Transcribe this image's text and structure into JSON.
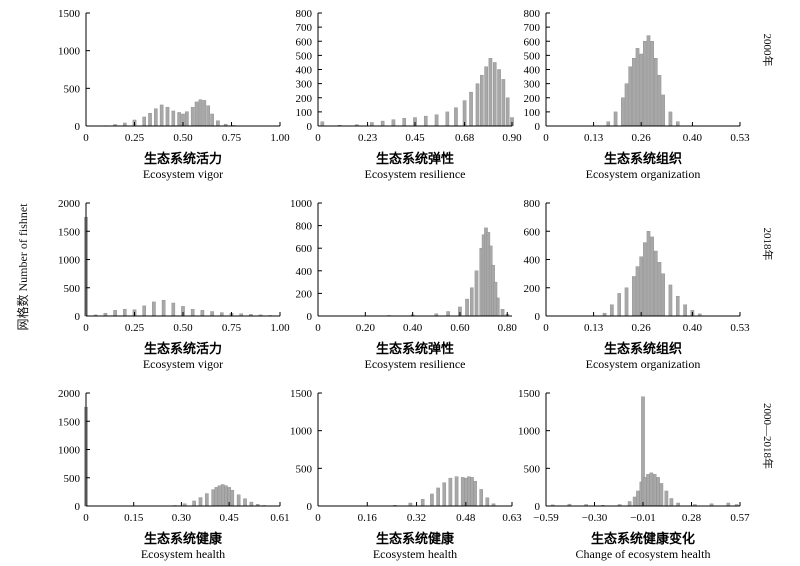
{
  "figure": {
    "ylabel": "网格数  Number of fishnet",
    "row_labels": [
      "2000年",
      "2018年",
      "2000—2018年"
    ]
  },
  "chart_data": [
    {
      "type": "bar",
      "row": 0,
      "col": 0,
      "title_zh": "生态系统活力",
      "title_en": "Ecosystem vigor",
      "xlim": [
        0,
        1
      ],
      "ylim": [
        0,
        1500
      ],
      "xticks": [
        0,
        0.25,
        0.5,
        0.75,
        1.0
      ],
      "xtick_labels": [
        "0",
        "0.25",
        "0.50",
        "0.75",
        "1.00"
      ],
      "yticks": [
        0,
        500,
        1000,
        1500
      ],
      "ytick_labels": [
        "0",
        "500",
        "1000",
        "1500"
      ],
      "x": [
        0.1,
        0.15,
        0.2,
        0.25,
        0.3,
        0.33,
        0.36,
        0.39,
        0.42,
        0.45,
        0.48,
        0.5,
        0.52,
        0.55,
        0.57,
        0.59,
        0.61,
        0.63,
        0.65,
        0.68,
        0.72,
        0.76
      ],
      "values": [
        5,
        20,
        40,
        80,
        120,
        170,
        230,
        280,
        250,
        200,
        180,
        160,
        190,
        250,
        320,
        350,
        340,
        270,
        160,
        70,
        25,
        8
      ]
    },
    {
      "type": "bar",
      "row": 0,
      "col": 1,
      "title_zh": "生态系统弹性",
      "title_en": "Ecosystem resilience",
      "xlim": [
        0,
        0.9
      ],
      "ylim": [
        0,
        800
      ],
      "xticks": [
        0,
        0.23,
        0.45,
        0.68,
        0.9
      ],
      "xtick_labels": [
        "0",
        "0.23",
        "0.45",
        "0.68",
        "0.90"
      ],
      "yticks": [
        0,
        100,
        200,
        300,
        400,
        500,
        600,
        700,
        800
      ],
      "ytick_labels": [
        "0",
        "100",
        "200",
        "300",
        "400",
        "500",
        "600",
        "700",
        "800"
      ],
      "x": [
        0.02,
        0.1,
        0.18,
        0.25,
        0.3,
        0.35,
        0.4,
        0.45,
        0.5,
        0.55,
        0.6,
        0.64,
        0.68,
        0.71,
        0.74,
        0.76,
        0.78,
        0.8,
        0.82,
        0.84,
        0.86,
        0.88,
        0.9
      ],
      "values": [
        30,
        5,
        10,
        25,
        35,
        45,
        55,
        60,
        70,
        80,
        100,
        130,
        180,
        240,
        300,
        360,
        420,
        480,
        450,
        400,
        330,
        200,
        60
      ]
    },
    {
      "type": "bar",
      "row": 0,
      "col": 2,
      "title_zh": "生态系统组织",
      "title_en": "Ecosystem organization",
      "xlim": [
        0,
        0.53
      ],
      "ylim": [
        0,
        800
      ],
      "xticks": [
        0,
        0.13,
        0.26,
        0.4,
        0.53
      ],
      "xtick_labels": [
        "0",
        "0.13",
        "0.26",
        "0.40",
        "0.53"
      ],
      "yticks": [
        0,
        100,
        200,
        300,
        400,
        500,
        600,
        700,
        800
      ],
      "ytick_labels": [
        "0",
        "100",
        "200",
        "300",
        "400",
        "500",
        "600",
        "700",
        "800"
      ],
      "x": [
        0.17,
        0.19,
        0.21,
        0.22,
        0.23,
        0.24,
        0.25,
        0.26,
        0.27,
        0.28,
        0.29,
        0.3,
        0.31,
        0.32,
        0.34,
        0.36
      ],
      "values": [
        30,
        100,
        200,
        300,
        420,
        480,
        550,
        510,
        600,
        640,
        600,
        480,
        360,
        220,
        100,
        30
      ]
    },
    {
      "type": "bar",
      "row": 1,
      "col": 0,
      "title_zh": "生态系统活力",
      "title_en": "Ecosystem vigor",
      "xlim": [
        0,
        1
      ],
      "ylim": [
        0,
        2000
      ],
      "xticks": [
        0,
        0.25,
        0.5,
        0.75,
        1.0
      ],
      "xtick_labels": [
        "0",
        "0.25",
        "0.50",
        "0.75",
        "1.00"
      ],
      "yticks": [
        0,
        500,
        1000,
        1500,
        2000
      ],
      "ytick_labels": [
        "0",
        "500",
        "1000",
        "1500",
        "2000"
      ],
      "x": [
        0.0,
        0.05,
        0.1,
        0.15,
        0.2,
        0.25,
        0.3,
        0.35,
        0.4,
        0.45,
        0.5,
        0.55,
        0.6,
        0.65,
        0.7,
        0.75,
        0.8,
        0.85,
        0.9,
        0.95
      ],
      "values": [
        1750,
        20,
        50,
        100,
        120,
        110,
        180,
        250,
        280,
        230,
        170,
        120,
        100,
        80,
        60,
        50,
        40,
        30,
        20,
        10
      ]
    },
    {
      "type": "bar",
      "row": 1,
      "col": 1,
      "title_zh": "生态系统弹性",
      "title_en": "Ecosystem resilience",
      "xlim": [
        0,
        0.82
      ],
      "ylim": [
        0,
        1000
      ],
      "xticks": [
        0,
        0.2,
        0.4,
        0.6,
        0.8
      ],
      "xtick_labels": [
        "0",
        "0.20",
        "0.40",
        "0.60",
        "0.80"
      ],
      "yticks": [
        0,
        200,
        400,
        600,
        800,
        1000
      ],
      "ytick_labels": [
        "0",
        "200",
        "400",
        "600",
        "800",
        "1000"
      ],
      "x": [
        0.3,
        0.4,
        0.5,
        0.55,
        0.6,
        0.63,
        0.65,
        0.67,
        0.69,
        0.7,
        0.71,
        0.72,
        0.73,
        0.74,
        0.75,
        0.76,
        0.78,
        0.8
      ],
      "values": [
        5,
        10,
        20,
        40,
        80,
        150,
        250,
        400,
        600,
        720,
        780,
        740,
        620,
        450,
        300,
        160,
        60,
        15
      ]
    },
    {
      "type": "bar",
      "row": 1,
      "col": 2,
      "title_zh": "生态系统组织",
      "title_en": "Ecosystem organization",
      "xlim": [
        0,
        0.53
      ],
      "ylim": [
        0,
        800
      ],
      "xticks": [
        0,
        0.13,
        0.26,
        0.4,
        0.53
      ],
      "xtick_labels": [
        "0",
        "0.13",
        "0.26",
        "0.40",
        "0.53"
      ],
      "yticks": [
        0,
        200,
        400,
        600,
        800
      ],
      "ytick_labels": [
        "0",
        "200",
        "400",
        "600",
        "800"
      ],
      "x": [
        0.16,
        0.18,
        0.2,
        0.22,
        0.24,
        0.25,
        0.26,
        0.27,
        0.28,
        0.29,
        0.3,
        0.31,
        0.32,
        0.34,
        0.36,
        0.38,
        0.4,
        0.42
      ],
      "values": [
        20,
        80,
        160,
        200,
        280,
        350,
        420,
        520,
        600,
        560,
        460,
        380,
        300,
        220,
        140,
        80,
        40,
        15
      ]
    },
    {
      "type": "bar",
      "row": 2,
      "col": 0,
      "title_zh": "生态系统健康",
      "title_en": "Ecosystem health",
      "xlim": [
        0,
        0.61
      ],
      "ylim": [
        0,
        2000
      ],
      "xticks": [
        0,
        0.15,
        0.3,
        0.45,
        0.61
      ],
      "xtick_labels": [
        "0",
        "0.15",
        "0.30",
        "0.45",
        "0.61"
      ],
      "yticks": [
        0,
        500,
        1000,
        1500,
        2000
      ],
      "ytick_labels": [
        "0",
        "500",
        "1000",
        "1500",
        "2000"
      ],
      "x": [
        0.0,
        0.28,
        0.31,
        0.34,
        0.36,
        0.38,
        0.4,
        0.41,
        0.42,
        0.43,
        0.44,
        0.45,
        0.46,
        0.48,
        0.5,
        0.52,
        0.54,
        0.56
      ],
      "values": [
        1750,
        10,
        40,
        90,
        150,
        220,
        290,
        330,
        360,
        380,
        360,
        330,
        280,
        200,
        130,
        70,
        30,
        10
      ]
    },
    {
      "type": "bar",
      "row": 2,
      "col": 1,
      "title_zh": "生态系统健康",
      "title_en": "Ecosystem health",
      "xlim": [
        0,
        0.63
      ],
      "ylim": [
        0,
        1500
      ],
      "xticks": [
        0,
        0.16,
        0.32,
        0.48,
        0.63
      ],
      "xtick_labels": [
        "0",
        "0.16",
        "0.32",
        "0.48",
        "0.63"
      ],
      "yticks": [
        0,
        500,
        1000,
        1500
      ],
      "ytick_labels": [
        "0",
        "500",
        "1000",
        "1500"
      ],
      "x": [
        0.25,
        0.3,
        0.34,
        0.37,
        0.39,
        0.41,
        0.43,
        0.45,
        0.47,
        0.48,
        0.49,
        0.5,
        0.51,
        0.53,
        0.55,
        0.57
      ],
      "values": [
        10,
        40,
        90,
        160,
        240,
        310,
        370,
        390,
        380,
        370,
        390,
        380,
        330,
        220,
        110,
        30
      ]
    },
    {
      "type": "bar",
      "row": 2,
      "col": 2,
      "title_zh": "生态系统健康变化",
      "title_en": "Change of ecosystem health",
      "xlim": [
        -0.59,
        0.57
      ],
      "ylim": [
        0,
        1500
      ],
      "xticks": [
        -0.59,
        -0.3,
        -0.01,
        0.28,
        0.57
      ],
      "xtick_labels": [
        "−0.59",
        "−0.30",
        "−0.01",
        "0.28",
        "0.57"
      ],
      "yticks": [
        0,
        500,
        1000,
        1500
      ],
      "ytick_labels": [
        "0",
        "500",
        "1000",
        "1500"
      ],
      "x": [
        -0.55,
        -0.45,
        -0.35,
        -0.25,
        -0.15,
        -0.09,
        -0.06,
        -0.04,
        -0.02,
        -0.01,
        0.0,
        0.02,
        0.04,
        0.06,
        0.08,
        0.1,
        0.13,
        0.16,
        0.2,
        0.3,
        0.4,
        0.5,
        0.55
      ],
      "values": [
        15,
        25,
        20,
        10,
        20,
        60,
        120,
        200,
        320,
        1450,
        380,
        420,
        440,
        420,
        380,
        300,
        200,
        100,
        40,
        20,
        30,
        40,
        20
      ]
    }
  ]
}
